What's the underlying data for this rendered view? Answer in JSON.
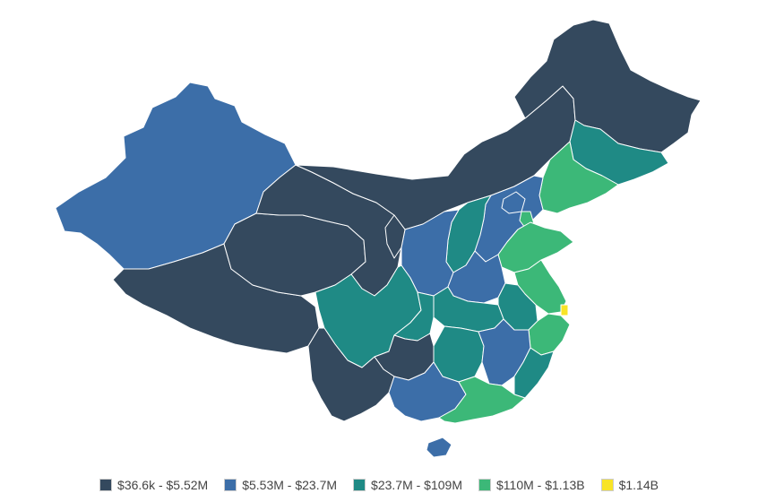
{
  "colors": {
    "tier1": "#34495e",
    "tier2": "#3c6ea8",
    "tier3": "#1f8a85",
    "tier4": "#3cb878",
    "tier5": "#f8e427"
  },
  "legend": [
    {
      "label": "$36.6k - $5.52M",
      "tier": "tier1"
    },
    {
      "label": "$5.53M - $23.7M",
      "tier": "tier2"
    },
    {
      "label": "$23.7M - $109M",
      "tier": "tier3"
    },
    {
      "label": "$110M - $1.13B",
      "tier": "tier4"
    },
    {
      "label": "$1.14B",
      "tier": "tier5"
    }
  ],
  "map_regions": [
    {
      "name": "xinjiang",
      "tier": "tier2"
    },
    {
      "name": "tibet",
      "tier": "tier1"
    },
    {
      "name": "qinghai",
      "tier": "tier1"
    },
    {
      "name": "gansu",
      "tier": "tier1"
    },
    {
      "name": "inner-mongolia",
      "tier": "tier1"
    },
    {
      "name": "heilongjiang",
      "tier": "tier1"
    },
    {
      "name": "jilin",
      "tier": "tier3"
    },
    {
      "name": "liaoning",
      "tier": "tier4"
    },
    {
      "name": "beijing",
      "tier": "tier2"
    },
    {
      "name": "tianjin",
      "tier": "tier4"
    },
    {
      "name": "hebei",
      "tier": "tier2"
    },
    {
      "name": "shanxi",
      "tier": "tier3"
    },
    {
      "name": "shaanxi",
      "tier": "tier2"
    },
    {
      "name": "ningxia",
      "tier": "tier1"
    },
    {
      "name": "shandong",
      "tier": "tier4"
    },
    {
      "name": "henan",
      "tier": "tier2"
    },
    {
      "name": "jiangsu",
      "tier": "tier4"
    },
    {
      "name": "shanghai",
      "tier": "tier5"
    },
    {
      "name": "anhui",
      "tier": "tier3"
    },
    {
      "name": "hubei",
      "tier": "tier3"
    },
    {
      "name": "sichuan",
      "tier": "tier3"
    },
    {
      "name": "chongqing",
      "tier": "tier3"
    },
    {
      "name": "zhejiang",
      "tier": "tier4"
    },
    {
      "name": "hunan",
      "tier": "tier3"
    },
    {
      "name": "jiangxi",
      "tier": "tier2"
    },
    {
      "name": "fujian",
      "tier": "tier3"
    },
    {
      "name": "guizhou",
      "tier": "tier1"
    },
    {
      "name": "yunnan",
      "tier": "tier1"
    },
    {
      "name": "guangxi",
      "tier": "tier2"
    },
    {
      "name": "guangdong",
      "tier": "tier4"
    },
    {
      "name": "hainan",
      "tier": "tier2"
    }
  ]
}
